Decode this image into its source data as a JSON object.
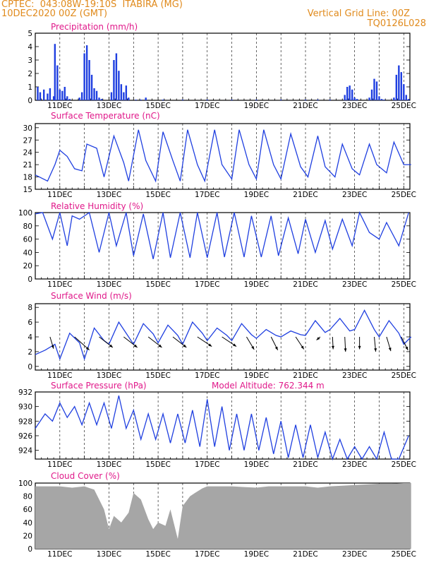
{
  "header": {
    "line1_left": "CPTEC:  043:08W-19:10S  ITABIRA (MG)",
    "line2_left": "10DEC2020 00Z (GMT)",
    "line1_right": "Vertical Grid Line: 00Z",
    "line2_right": "TQ0126L028"
  },
  "colors": {
    "header": "#e08a1c",
    "panel_title": "#e0198a",
    "series": "#1f3fe0",
    "cloud": "#a6a6a6",
    "wind_arrow": "#000000"
  },
  "x_tick_labels": [
    "11DEC",
    "13DEC",
    "15DEC",
    "17DEC",
    "19DEC",
    "21DEC",
    "23DEC",
    "25DEC"
  ],
  "chart_data": [
    {
      "type": "bar",
      "title": "Precipitation (mm/h)",
      "ylim": [
        0,
        5
      ],
      "yticks": [
        0,
        1,
        2,
        3,
        4,
        5
      ],
      "x": [
        0.1,
        0.2,
        0.35,
        0.5,
        0.6,
        0.75,
        0.8,
        0.9,
        1.0,
        1.1,
        1.2,
        1.3,
        1.4,
        1.5,
        1.8,
        1.9,
        2.0,
        2.1,
        2.2,
        2.3,
        2.4,
        2.5,
        2.6,
        2.7,
        3.1,
        3.2,
        3.3,
        3.4,
        3.5,
        3.6,
        3.7,
        3.8,
        4.1,
        4.3,
        4.5,
        5.2,
        6.0,
        7.0,
        8.0,
        9.0,
        10.0,
        11.0,
        11.5,
        12.0,
        12.6,
        12.7,
        12.8,
        12.9,
        13.0,
        13.1,
        13.6,
        13.7,
        13.8,
        13.9,
        14.0,
        14.1,
        14.2,
        14.6,
        14.7,
        14.8,
        14.9,
        15.0,
        15.1,
        15.2
      ],
      "values": [
        1.0,
        0.6,
        0.8,
        0.5,
        0.9,
        0.3,
        4.2,
        2.6,
        0.8,
        0.7,
        1.0,
        0.3,
        0.1,
        0.0,
        0.2,
        0.6,
        3.5,
        4.1,
        3.0,
        1.9,
        0.9,
        0.7,
        0.2,
        0.1,
        0.6,
        3.0,
        3.5,
        2.2,
        1.2,
        0.6,
        1.1,
        0.2,
        0.05,
        0.05,
        0.2,
        0.05,
        0.05,
        0.05,
        0.05,
        0.05,
        0.05,
        0.05,
        0.05,
        0.05,
        0.4,
        1.0,
        1.1,
        0.8,
        0.2,
        0.1,
        0.2,
        0.8,
        1.6,
        1.4,
        0.3,
        0.1,
        0.05,
        0.2,
        1.9,
        2.6,
        2.1,
        1.2,
        0.4,
        0.1
      ]
    },
    {
      "type": "line",
      "title": "Surface Temperature (nC)",
      "ylim": [
        15,
        31
      ],
      "yticks": [
        15,
        18,
        21,
        24,
        27,
        30
      ],
      "x": [
        0,
        0.5,
        0.8,
        1.0,
        1.3,
        1.6,
        1.9,
        2.1,
        2.5,
        2.8,
        3.2,
        3.6,
        3.8,
        4.2,
        4.5,
        4.9,
        5.2,
        5.6,
        5.9,
        6.2,
        6.6,
        6.9,
        7.3,
        7.6,
        8.0,
        8.3,
        8.7,
        9.0,
        9.3,
        9.7,
        10.0,
        10.4,
        10.8,
        11.1,
        11.5,
        11.8,
        12.2,
        12.5,
        12.9,
        13.2,
        13.6,
        13.9,
        14.3,
        14.6,
        15.0,
        15.3
      ],
      "values": [
        18.5,
        17,
        21,
        24.5,
        23,
        20,
        19.5,
        26,
        25,
        18,
        28,
        21.5,
        17,
        29.5,
        22,
        17,
        29,
        22,
        17,
        29.5,
        21,
        17,
        29.5,
        21,
        17.5,
        29.5,
        21,
        17.5,
        29.5,
        21,
        17.5,
        28.5,
        20.5,
        18,
        28,
        20.5,
        18,
        26,
        20,
        18.5,
        26,
        21,
        19,
        26.5,
        21,
        21
      ]
    },
    {
      "type": "line",
      "title": "Relative Humidity (%)",
      "ylim": [
        0,
        100
      ],
      "yticks": [
        0,
        20,
        40,
        60,
        80,
        100
      ],
      "x": [
        0,
        0.3,
        0.7,
        1.0,
        1.3,
        1.5,
        1.8,
        2.2,
        2.6,
        3.0,
        3.3,
        3.7,
        4.0,
        4.4,
        4.8,
        5.2,
        5.5,
        5.9,
        6.3,
        6.6,
        7.0,
        7.4,
        7.7,
        8.1,
        8.5,
        8.8,
        9.2,
        9.6,
        9.9,
        10.3,
        10.7,
        11.0,
        11.4,
        11.8,
        12.1,
        12.5,
        12.9,
        13.2,
        13.6,
        14.0,
        14.3,
        14.8,
        15.2
      ],
      "values": [
        98,
        100,
        60,
        100,
        50,
        95,
        90,
        100,
        40,
        100,
        50,
        100,
        35,
        98,
        30,
        100,
        32,
        100,
        32,
        100,
        32,
        100,
        33,
        100,
        33,
        95,
        33,
        95,
        35,
        92,
        38,
        90,
        40,
        88,
        45,
        90,
        50,
        100,
        70,
        60,
        85,
        50,
        100
      ]
    },
    {
      "type": "line",
      "title": "Surface Wind (m/s)",
      "ylim": [
        -0.5,
        8.5
      ],
      "yticks": [
        0,
        2,
        4,
        6,
        8
      ],
      "x": [
        0,
        0.4,
        0.8,
        1.0,
        1.4,
        1.8,
        2.0,
        2.4,
        2.8,
        3.0,
        3.4,
        3.8,
        4.0,
        4.4,
        4.8,
        5.0,
        5.4,
        5.8,
        6.0,
        6.4,
        6.8,
        7.0,
        7.4,
        7.8,
        8.0,
        8.4,
        8.8,
        9.0,
        9.4,
        9.8,
        10.0,
        10.4,
        10.8,
        11.0,
        11.4,
        11.8,
        12.0,
        12.4,
        12.8,
        13.0,
        13.4,
        13.8,
        14.0,
        14.4,
        14.8,
        15.0,
        15.3
      ],
      "values": [
        1.6,
        2.2,
        3.0,
        1.0,
        4.5,
        3.2,
        1.0,
        5.2,
        3.5,
        3.0,
        6.0,
        4.0,
        3.0,
        5.8,
        4.4,
        3.2,
        5.6,
        4.2,
        3.0,
        6.0,
        4.5,
        3.5,
        5.2,
        4.2,
        3.5,
        5.8,
        4.3,
        3.8,
        5.0,
        4.2,
        4.0,
        4.8,
        4.3,
        4.2,
        6.2,
        4.6,
        5.0,
        6.5,
        4.8,
        5.0,
        7.6,
        5.0,
        4.0,
        6.2,
        4.5,
        3.0,
        4.0
      ],
      "arrows": {
        "x": [
          0.6,
          1.6,
          2.6,
          3.6,
          4.6,
          5.6,
          6.6,
          7.6,
          8.6,
          9.6,
          10.6,
          11.6,
          12.1,
          12.6,
          13.2,
          13.8,
          14.3,
          14.9
        ],
        "dir": [
          [
            0.3,
            -1.0
          ],
          [
            0.9,
            -0.8
          ],
          [
            0.9,
            -0.7
          ],
          [
            0.9,
            -0.7
          ],
          [
            0.9,
            -0.7
          ],
          [
            0.9,
            -0.7
          ],
          [
            0.9,
            -0.6
          ],
          [
            0.9,
            -0.6
          ],
          [
            0.6,
            -1.0
          ],
          [
            0.5,
            -1.0
          ],
          [
            0.6,
            -0.9
          ],
          [
            -0.7,
            -0.6
          ],
          [
            0.05,
            -1.0
          ],
          [
            0.05,
            -1.0
          ],
          [
            0.0,
            -1.0
          ],
          [
            0.1,
            -1.0
          ],
          [
            0.3,
            -1.0
          ],
          [
            0.5,
            -1.0
          ]
        ],
        "len": [
          2.5,
          4.0,
          3.5,
          3.5,
          3.5,
          3.5,
          3.5,
          3.5,
          3.0,
          3.0,
          3.0,
          1.0,
          2.5,
          3.0,
          2.5,
          3.0,
          3.0,
          3.0
        ]
      }
    },
    {
      "type": "line",
      "title": "Surface Pressure (hPa)",
      "subtitle": "Model Altitude: 762.344 m",
      "ylim": [
        922.8,
        932
      ],
      "yticks": [
        924,
        926,
        928,
        930,
        932
      ],
      "x": [
        0,
        0.4,
        0.7,
        1.0,
        1.3,
        1.6,
        1.9,
        2.2,
        2.5,
        2.8,
        3.1,
        3.4,
        3.7,
        4.0,
        4.3,
        4.6,
        4.9,
        5.2,
        5.5,
        5.8,
        6.1,
        6.4,
        6.7,
        7.0,
        7.3,
        7.6,
        7.9,
        8.2,
        8.5,
        8.8,
        9.1,
        9.4,
        9.7,
        10.0,
        10.3,
        10.6,
        10.9,
        11.2,
        11.5,
        11.8,
        12.1,
        12.4,
        12.7,
        13.0,
        13.3,
        13.6,
        13.9,
        14.2,
        14.5,
        14.8,
        15.2
      ],
      "values": [
        927,
        929,
        928,
        930.5,
        928.5,
        930,
        927.5,
        930.5,
        927.5,
        930.5,
        927,
        931.5,
        927,
        929.5,
        925.5,
        929,
        925.5,
        929,
        925,
        929,
        925,
        929.5,
        924.5,
        931,
        924.5,
        930,
        924,
        929,
        924,
        929,
        924,
        928.5,
        923.5,
        928,
        923,
        927.5,
        923,
        927.5,
        923,
        926.5,
        922.8,
        925.5,
        922.8,
        924.5,
        922.5,
        924.5,
        922.8,
        926.5,
        922.5,
        922.8,
        926
      ]
    },
    {
      "type": "area",
      "title": "Cloud Cover (%)",
      "ylim": [
        0,
        100
      ],
      "yticks": [
        0,
        20,
        40,
        60,
        80,
        100
      ],
      "x": [
        0,
        0.5,
        1.0,
        1.5,
        2.0,
        2.4,
        2.8,
        3.0,
        3.2,
        3.5,
        3.8,
        4.0,
        4.3,
        4.6,
        4.8,
        5.0,
        5.3,
        5.5,
        5.8,
        6.0,
        6.3,
        6.5,
        6.8,
        7.0,
        7.5,
        8.0,
        8.5,
        9.0,
        9.5,
        10.0,
        10.5,
        11.0,
        11.5,
        12.0,
        12.5,
        13.0,
        13.5,
        14.0,
        14.5,
        15.0,
        15.3
      ],
      "values": [
        95,
        95,
        95,
        93,
        95,
        90,
        60,
        30,
        50,
        40,
        55,
        85,
        75,
        45,
        30,
        40,
        35,
        60,
        15,
        65,
        80,
        85,
        92,
        95,
        95,
        95,
        94,
        93,
        95,
        95,
        95,
        95,
        93,
        95,
        96,
        97,
        98,
        99,
        99,
        100,
        100
      ]
    }
  ]
}
